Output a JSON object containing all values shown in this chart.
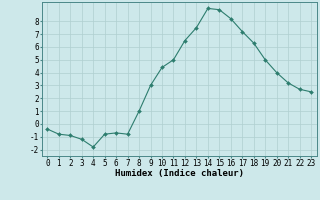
{
  "x": [
    0,
    1,
    2,
    3,
    4,
    5,
    6,
    7,
    8,
    9,
    10,
    11,
    12,
    13,
    14,
    15,
    16,
    17,
    18,
    19,
    20,
    21,
    22,
    23
  ],
  "y": [
    -0.4,
    -0.8,
    -0.9,
    -1.2,
    -1.8,
    -0.8,
    -0.7,
    -0.8,
    1.0,
    3.0,
    4.4,
    5.0,
    6.5,
    7.5,
    9.0,
    8.9,
    8.2,
    7.2,
    6.3,
    5.0,
    4.0,
    3.2,
    2.7,
    2.5
  ],
  "line_color": "#2d7d6e",
  "marker": "D",
  "marker_size": 2.0,
  "bg_color": "#cde8ea",
  "grid_color": "#b0cfd0",
  "xlabel": "Humidex (Indice chaleur)",
  "ylim": [
    -2.5,
    9.5
  ],
  "xlim": [
    -0.5,
    23.5
  ],
  "yticks": [
    -2,
    -1,
    0,
    1,
    2,
    3,
    4,
    5,
    6,
    7,
    8
  ],
  "xtick_labels": [
    "0",
    "1",
    "2",
    "3",
    "4",
    "5",
    "6",
    "7",
    "8",
    "9",
    "10",
    "11",
    "12",
    "13",
    "14",
    "15",
    "16",
    "17",
    "18",
    "19",
    "20",
    "21",
    "22",
    "23"
  ],
  "tick_fontsize": 5.5,
  "xlabel_fontsize": 6.5,
  "line_width": 0.8
}
